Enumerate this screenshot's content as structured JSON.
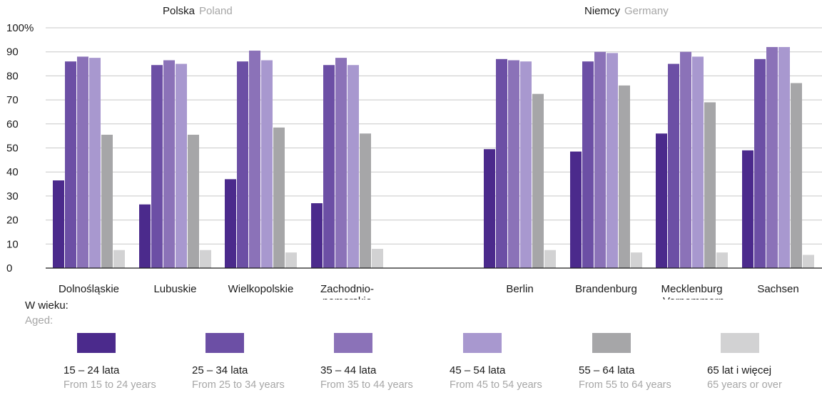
{
  "chart_data": {
    "type": "bar",
    "group_titles": [
      {
        "pl": "Polska",
        "en": "Poland"
      },
      {
        "pl": "Niemcy",
        "en": "Germany"
      }
    ],
    "categories": [
      [
        "Dolnośląskie"
      ],
      [
        "Lubuskie"
      ],
      [
        "Wielkopolskie"
      ],
      [
        "Zachodnio-",
        "pomorskie"
      ],
      [
        "Berlin"
      ],
      [
        "Brandenburg"
      ],
      [
        "Mecklenburg",
        "-Vorpommern"
      ],
      [
        "Sachsen"
      ]
    ],
    "y_ticks": [
      "0",
      "10",
      "20",
      "30",
      "40",
      "50",
      "60",
      "70",
      "80",
      "90",
      "100%"
    ],
    "ylim": [
      0,
      100
    ],
    "grid": true,
    "series": [
      {
        "name": "15 – 24 lata",
        "name_en": "From 15 to 24 years",
        "color": "#4b2a8c",
        "values": [
          36.5,
          26.5,
          37,
          27,
          49.5,
          48.5,
          56,
          49
        ]
      },
      {
        "name": "25 – 34 lata",
        "name_en": "From 25 to 34 years",
        "color": "#6c4fa5",
        "values": [
          86,
          84.5,
          86,
          84.5,
          87,
          86,
          85,
          87
        ]
      },
      {
        "name": "35 – 44 lata",
        "name_en": "From 35 to 44 years",
        "color": "#8b72b8",
        "values": [
          88,
          86.5,
          90.5,
          87.5,
          86.5,
          90,
          90,
          92
        ]
      },
      {
        "name": "45 – 54 lata",
        "name_en": "From 45 to 54 years",
        "color": "#a898cf",
        "values": [
          87.5,
          85,
          86.5,
          84.5,
          86,
          89.5,
          88,
          92
        ]
      },
      {
        "name": "55 – 64 lata",
        "name_en": "From 55 to 64 years",
        "color": "#a6a6a8",
        "values": [
          55.5,
          55.5,
          58.5,
          56,
          72.5,
          76,
          69,
          77
        ]
      },
      {
        "name": "65 lat i więcej",
        "name_en": "65 years or over",
        "color": "#d2d2d3",
        "values": [
          7.5,
          7.5,
          6.5,
          8,
          7.5,
          6.5,
          6.5,
          5.5
        ]
      }
    ]
  },
  "legend": {
    "title_pl": "W wieku:",
    "title_en": "Aged:"
  }
}
